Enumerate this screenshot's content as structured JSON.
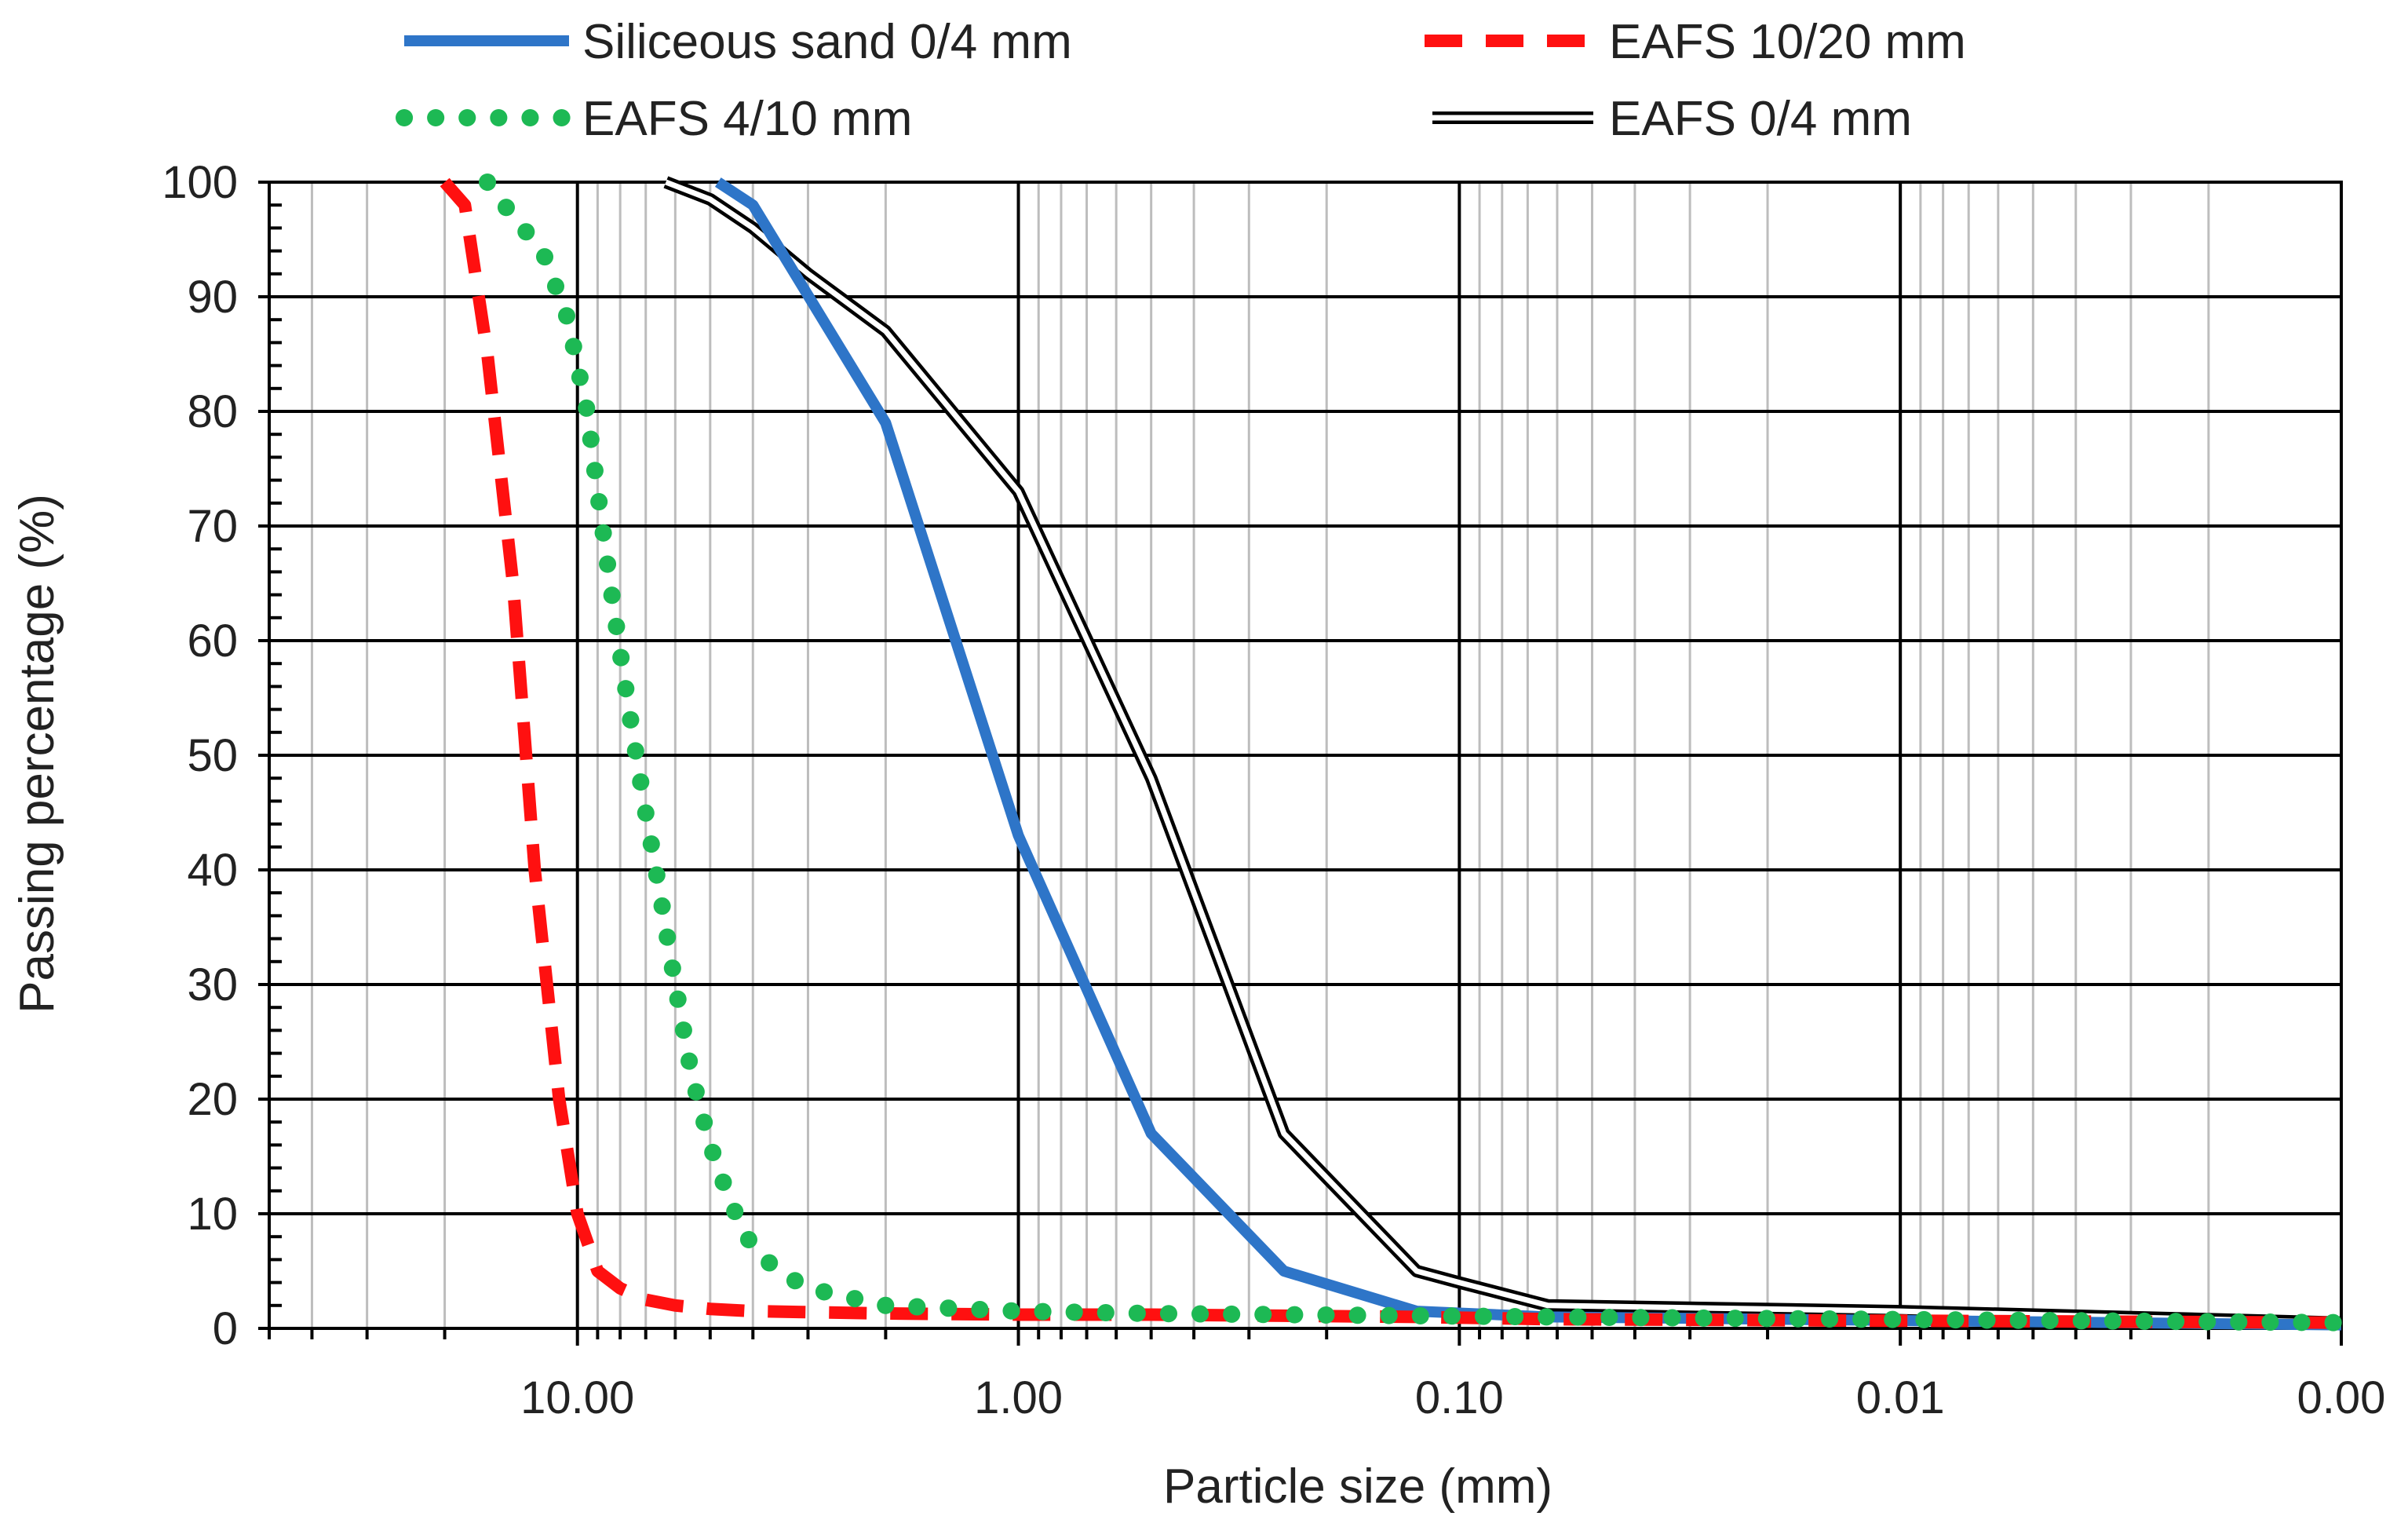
{
  "chart_data": {
    "type": "line",
    "title": "",
    "xlabel": "Particle size (mm)",
    "ylabel": "Passing percentage (%)",
    "x_scale": "log",
    "x_reversed": true,
    "xlim": [
      50,
      0.001
    ],
    "ylim": [
      0,
      100
    ],
    "grid": true,
    "legend_position": "top",
    "x_ticks": [
      {
        "value": 10,
        "label": "10.00"
      },
      {
        "value": 1,
        "label": "1.00"
      },
      {
        "value": 0.1,
        "label": "0.10"
      },
      {
        "value": 0.01,
        "label": "0.01"
      },
      {
        "value": 0.001,
        "label": "0.00"
      }
    ],
    "y_ticks": [
      {
        "value": 0,
        "label": "0"
      },
      {
        "value": 10,
        "label": "10"
      },
      {
        "value": 20,
        "label": "20"
      },
      {
        "value": 30,
        "label": "30"
      },
      {
        "value": 40,
        "label": "40"
      },
      {
        "value": 50,
        "label": "50"
      },
      {
        "value": 60,
        "label": "60"
      },
      {
        "value": 70,
        "label": "70"
      },
      {
        "value": 80,
        "label": "80"
      },
      {
        "value": 90,
        "label": "90"
      },
      {
        "value": 100,
        "label": "100"
      }
    ],
    "series": [
      {
        "name": "Siliceous sand 0/4 mm",
        "style": "solid-thick",
        "color": "#2E75C8",
        "x": [
          4.8,
          4,
          2,
          1,
          0.5,
          0.25,
          0.125,
          0.063,
          0.001
        ],
        "y": [
          100,
          98,
          79,
          43,
          17,
          5,
          1.5,
          1,
          0.3
        ]
      },
      {
        "name": "EAFS 10/20 mm",
        "style": "dashed",
        "color": "#FF1010",
        "x": [
          20,
          18,
          16,
          14,
          12.5,
          11,
          10,
          9,
          8,
          7,
          6,
          5,
          4,
          2,
          1,
          0.5,
          0.25,
          0.125,
          0.063,
          0.001
        ],
        "y": [
          100,
          98,
          85,
          65,
          40,
          20,
          10,
          5,
          3.5,
          2.5,
          2,
          1.7,
          1.5,
          1.3,
          1.2,
          1.2,
          1.1,
          1,
          0.8,
          0.5
        ]
      },
      {
        "name": "EAFS 4/10 mm",
        "style": "dotted",
        "color": "#1DB954",
        "x": [
          16,
          14,
          12,
          10.5,
          10,
          9.5,
          9,
          8.5,
          8,
          7.5,
          7,
          6.5,
          6,
          5.5,
          5,
          4.5,
          4,
          3.5,
          3,
          2,
          1,
          0.5,
          0.25,
          0.125,
          0.063,
          0.001
        ],
        "y": [
          100,
          97,
          94,
          88,
          84,
          80,
          73,
          66,
          59,
          52,
          45,
          38,
          30,
          22,
          16,
          11,
          7,
          5,
          3.5,
          2,
          1.5,
          1.3,
          1.2,
          1.1,
          1,
          0.5
        ]
      },
      {
        "name": "EAFS 0/4 mm",
        "style": "double",
        "color": "#000000",
        "x": [
          6.3,
          5,
          4,
          3,
          2,
          1,
          0.5,
          0.25,
          0.125,
          0.1,
          0.063,
          0.01,
          0.001
        ],
        "y": [
          100,
          98.5,
          96,
          92,
          87,
          73,
          48,
          17,
          5,
          4,
          2,
          1.5,
          0.5
        ]
      }
    ]
  }
}
